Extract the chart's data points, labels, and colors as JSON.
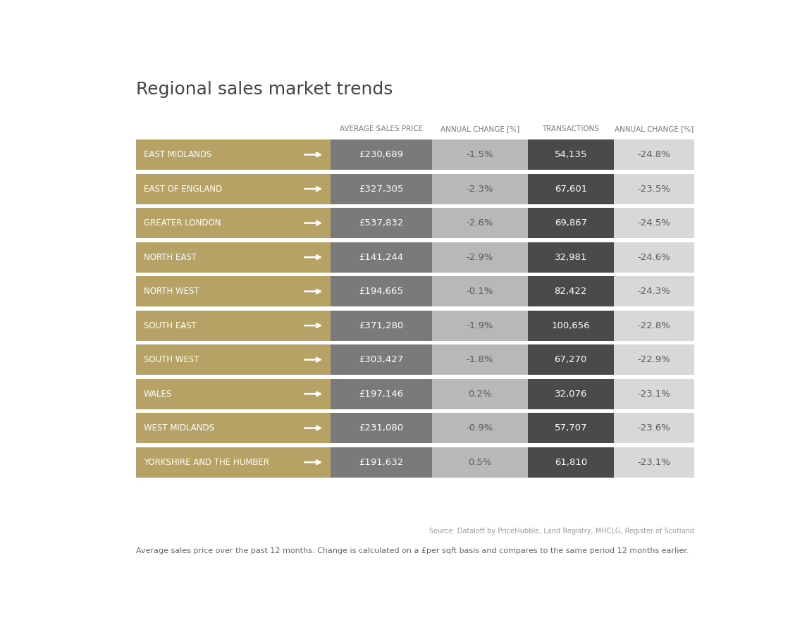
{
  "title": "Regional sales market trends",
  "headers": [
    "AVERAGE SALES PRICE",
    "ANNUAL CHANGE [%]",
    "TRANSACTIONS",
    "ANNUAL CHANGE [%]"
  ],
  "regions": [
    "EAST MIDLANDS",
    "EAST OF ENGLAND",
    "GREATER LONDON",
    "NORTH EAST",
    "NORTH WEST",
    "SOUTH EAST",
    "SOUTH WEST",
    "WALES",
    "WEST MIDLANDS",
    "YORKSHIRE AND THE HUMBER"
  ],
  "avg_price": [
    "£230,689",
    "£327,305",
    "£537,832",
    "£141,244",
    "£194,665",
    "£371,280",
    "£303,427",
    "£197,146",
    "£231,080",
    "£191,632"
  ],
  "annual_change_price": [
    "-1.5%",
    "-2.3%",
    "-2.6%",
    "-2.9%",
    "-0.1%",
    "-1.9%",
    "-1.8%",
    "0.2%",
    "-0.9%",
    "0.5%"
  ],
  "transactions": [
    "54,135",
    "67,601",
    "69,867",
    "32,981",
    "82,422",
    "100,656",
    "67,270",
    "32,076",
    "57,707",
    "61,810"
  ],
  "annual_change_trans": [
    "-24.8%",
    "-23.5%",
    "-24.5%",
    "-24.6%",
    "-24.3%",
    "-22.8%",
    "-22.9%",
    "-23.1%",
    "-23.6%",
    "-23.1%"
  ],
  "color_gold": "#b5a264",
  "color_price_gray": "#7a7a7a",
  "color_ac_price_gray": "#b8b8b8",
  "color_trans_dark": "#4a4a4a",
  "color_ac_trans_light": "#d8d8d8",
  "color_white": "#ffffff",
  "color_bg": "#ffffff",
  "color_header_text": "#7a7a7a",
  "color_region_text": "#ffffff",
  "color_dark_text": "#5a5a5a",
  "color_mid_text": "#5a5a5a",
  "source_text": "Source: Dataloft by PriceHubble, Land Registry, MHCLG, Register of Scotland",
  "footnote_text": "Average sales price over the past 12 months. Change is calculated on a £per sqft basis and compares to the same period 12 months earlier.",
  "title_fontsize": 18,
  "header_fontsize": 7.5,
  "region_fontsize": 8.5,
  "value_fontsize": 9.5
}
